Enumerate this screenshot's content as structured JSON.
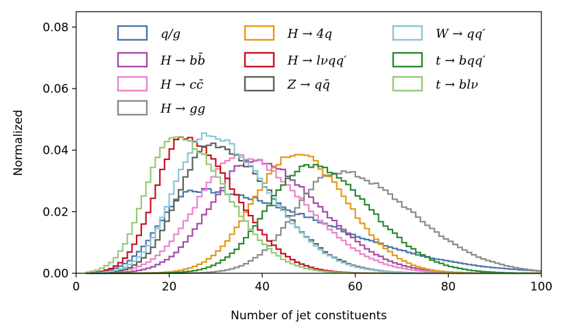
{
  "chart_data": {
    "type": "line",
    "xlabel": "Number of jet constituents",
    "ylabel": "Normalized",
    "xlim": [
      0,
      100
    ],
    "ylim": [
      0,
      0.085
    ],
    "xticks": [
      "0",
      "20",
      "40",
      "60",
      "80",
      "100"
    ],
    "yticks": [
      "0.00",
      "0.02",
      "0.04",
      "0.06",
      "0.08"
    ],
    "grid": false,
    "legend_position": "top",
    "series": [
      {
        "name": "q/g",
        "color": "#4a76a8",
        "peak": 25,
        "sl": 7,
        "sr": 28,
        "height": 0.027
      },
      {
        "name": "H → bb̄",
        "color": "#a44ca4",
        "peak": 38,
        "sl": 9,
        "sr": 14,
        "height": 0.037
      },
      {
        "name": "H → cc̄",
        "color": "#ea84c9",
        "peak": 35,
        "sl": 9,
        "sr": 14,
        "height": 0.038
      },
      {
        "name": "H → gg",
        "color": "#8c8c8c",
        "peak": 56,
        "sl": 9,
        "sr": 16,
        "height": 0.033
      },
      {
        "name": "H → 4q",
        "color": "#e49a18",
        "peak": 47,
        "sl": 9,
        "sr": 11,
        "height": 0.039
      },
      {
        "name": "H → lνqq′",
        "color": "#c8101e",
        "peak": 23,
        "sl": 6,
        "sr": 11,
        "height": 0.044
      },
      {
        "name": "Z → qq̄",
        "color": "#5a6258",
        "peak": 29,
        "sl": 7,
        "sr": 13,
        "height": 0.042
      },
      {
        "name": "W → qq′",
        "color": "#8ac4d6",
        "peak": 28,
        "sl": 7,
        "sr": 13,
        "height": 0.045
      },
      {
        "name": "t → bqq′",
        "color": "#2a8a2e",
        "peak": 50,
        "sl": 9,
        "sr": 13,
        "height": 0.035
      },
      {
        "name": "t → blν",
        "color": "#96c878",
        "peak": 21,
        "sl": 6,
        "sr": 11,
        "height": 0.045
      }
    ]
  }
}
